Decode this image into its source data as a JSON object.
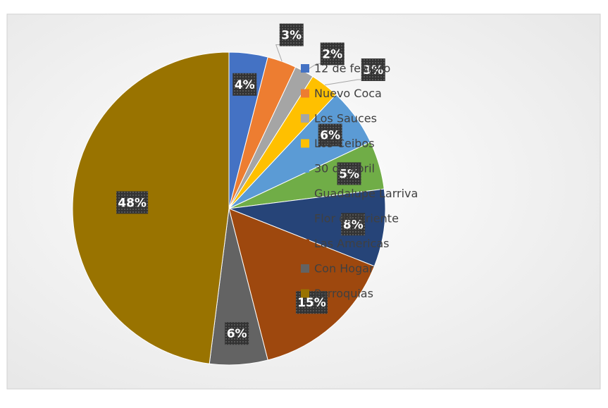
{
  "chart_data": {
    "type": "pie",
    "categories": [
      "12 de febrero",
      "Nuevo Coca",
      "Los Sauces",
      "Los Ceibos",
      "30  de abril",
      "Guadalupe Larriva",
      "Flor de Oriente",
      "Las Americas",
      "Con Hogar",
      "Parroquias"
    ],
    "values": [
      4,
      3,
      2,
      3,
      6,
      5,
      8,
      15,
      6,
      48
    ],
    "value_labels": [
      "4%",
      "3%",
      "2%",
      "3%",
      "6%",
      "5%",
      "8%",
      "15%",
      "6%",
      "48%"
    ],
    "colors": [
      "#4472c4",
      "#ed7d31",
      "#a5a5a5",
      "#ffc000",
      "#5b9bd5",
      "#70ad47",
      "#264478",
      "#9e480e",
      "#636363",
      "#997300"
    ],
    "legend": "right"
  }
}
